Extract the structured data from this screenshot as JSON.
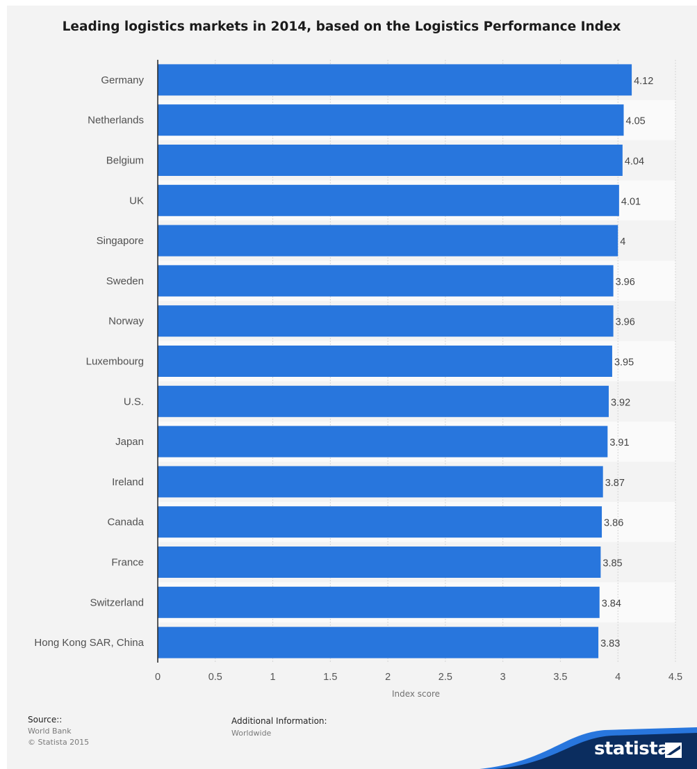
{
  "title": "Leading logistics markets in 2014, based on the Logistics Performance Index",
  "chart_data": {
    "type": "bar",
    "orientation": "horizontal",
    "title": "Leading logistics markets in 2014, based on the Logistics Performance Index",
    "xlabel": "Index score",
    "ylabel": "",
    "xlim": [
      0,
      4.5
    ],
    "xticks": [
      "0",
      "0.5",
      "1",
      "1.5",
      "2",
      "2.5",
      "3",
      "3.5",
      "4",
      "4.5"
    ],
    "grid": true,
    "categories": [
      "Germany",
      "Netherlands",
      "Belgium",
      "UK",
      "Singapore",
      "Sweden",
      "Norway",
      "Luxembourg",
      "U.S.",
      "Japan",
      "Ireland",
      "Canada",
      "France",
      "Switzerland",
      "Hong Kong SAR, China"
    ],
    "values": [
      4.12,
      4.05,
      4.04,
      4.01,
      4,
      3.96,
      3.96,
      3.95,
      3.92,
      3.91,
      3.87,
      3.86,
      3.85,
      3.84,
      3.83
    ],
    "value_labels": [
      "4.12",
      "4.05",
      "4.04",
      "4.01",
      "4",
      "3.96",
      "3.96",
      "3.95",
      "3.92",
      "3.91",
      "3.87",
      "3.86",
      "3.85",
      "3.84",
      "3.83"
    ]
  },
  "colors": {
    "bar": "#2876dd",
    "background": "#f3f3f3",
    "row_stripe": "#fafafa",
    "brand_wave_dark": "#0b2d5f",
    "brand_wave_light": "#2876dd"
  },
  "footer": {
    "source_heading": "Source::",
    "source_lines": [
      "World Bank",
      "© Statista 2015"
    ],
    "additional_heading": "Additional Information:",
    "additional_lines": [
      "Worldwide"
    ],
    "brand": "statista"
  }
}
